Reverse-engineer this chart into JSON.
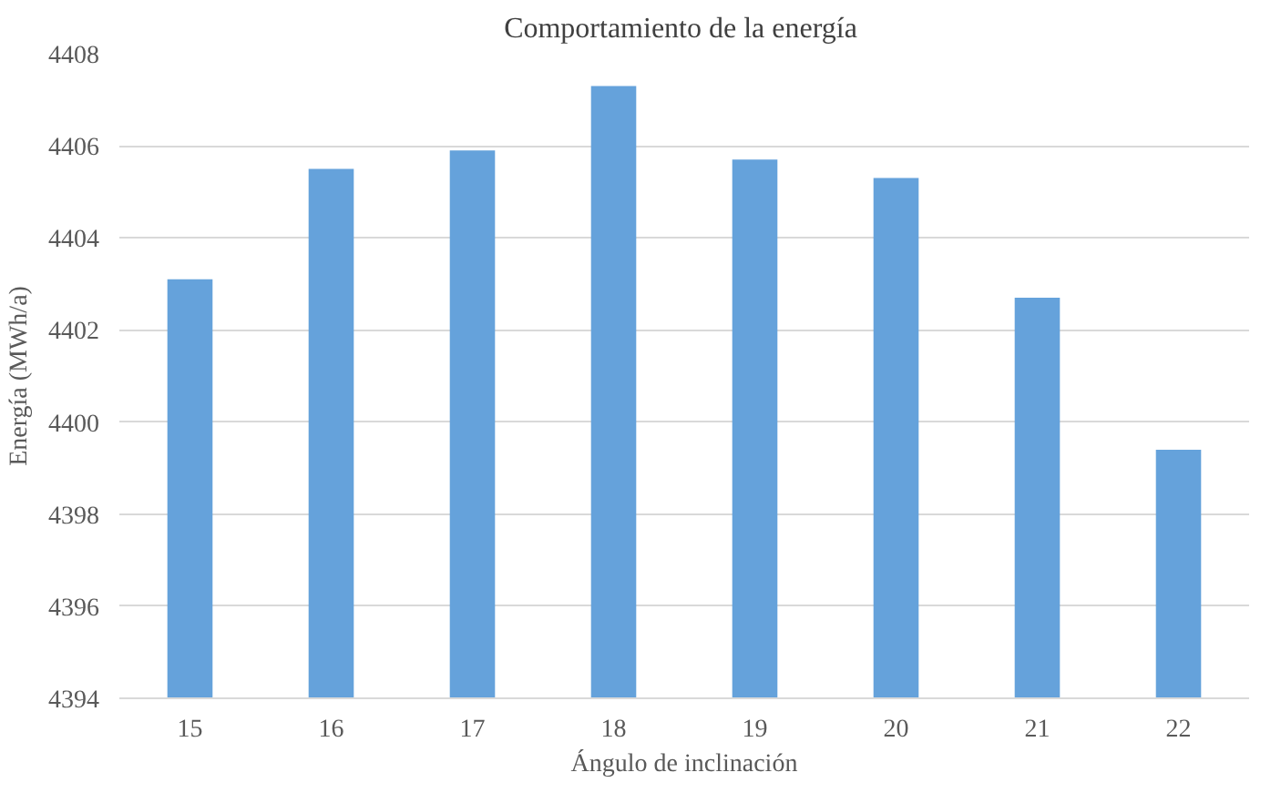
{
  "chart_data": {
    "type": "bar",
    "title": "Comportamiento  de la energía",
    "xlabel": "Ángulo de inclinación",
    "ylabel": "Energía (MWh/a)",
    "categories": [
      "15",
      "16",
      "17",
      "18",
      "19",
      "20",
      "21",
      "22"
    ],
    "values": [
      4403.1,
      4405.5,
      4405.9,
      4407.3,
      4405.7,
      4405.3,
      4402.7,
      4399.4
    ],
    "color": "#65a2db",
    "ylim": [
      4394,
      4408
    ],
    "yticks": [
      4394,
      4396,
      4398,
      4400,
      4402,
      4404,
      4406,
      4408
    ],
    "grid": "y"
  }
}
